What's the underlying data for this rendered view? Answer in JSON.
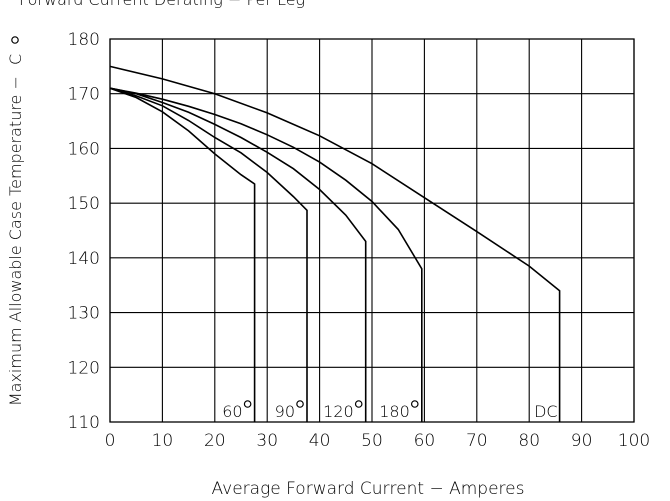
{
  "chart_data": {
    "type": "line",
    "title": "Forward Current Derating − Per Leg",
    "xlabel": "Average Forward Current − Amperes",
    "ylabel": "Maximum Allowable Case Temperature − ",
    "ylabel_unit": "C",
    "xlim": [
      0,
      100
    ],
    "ylim": [
      110,
      180
    ],
    "x_ticks": [
      "0",
      "10",
      "20",
      "30",
      "40",
      "50",
      "60",
      "70",
      "80",
      "90",
      "100"
    ],
    "y_ticks": [
      "110",
      "120",
      "130",
      "140",
      "150",
      "160",
      "170",
      "180"
    ],
    "grid": true,
    "series": [
      {
        "name": "60°",
        "label": "60",
        "x": [
          0,
          5,
          10,
          15,
          20,
          25,
          27.6,
          27.6
        ],
        "y": [
          171,
          169.3,
          166.7,
          163.2,
          159,
          155.2,
          153.5,
          110
        ]
      },
      {
        "name": "90°",
        "label": "90",
        "x": [
          0,
          5,
          10,
          15,
          20,
          25,
          30,
          35,
          37.6,
          37.6
        ],
        "y": [
          171,
          169.6,
          167.8,
          165.1,
          162,
          159.2,
          155.6,
          151.2,
          148.7,
          110
        ]
      },
      {
        "name": "120°",
        "label": "120",
        "x": [
          0,
          5,
          10,
          15,
          20,
          25,
          30,
          35,
          40,
          45,
          48.8,
          48.8
        ],
        "y": [
          171,
          170,
          168.4,
          166.6,
          164.4,
          162,
          159.3,
          156.3,
          152.5,
          147.8,
          143,
          110
        ]
      },
      {
        "name": "180°",
        "label": "180",
        "x": [
          0,
          5,
          10,
          15,
          20,
          25,
          30,
          35,
          40,
          45,
          50,
          55,
          59.5,
          59.5
        ],
        "y": [
          171,
          170.1,
          169,
          167.7,
          166.2,
          164.5,
          162.5,
          160.2,
          157.5,
          154.2,
          150.3,
          145.2,
          138,
          110
        ]
      },
      {
        "name": "DC",
        "label": "DC",
        "x": [
          0,
          10,
          20,
          30,
          40,
          50,
          60,
          70,
          80,
          85.8,
          85.8
        ],
        "y": [
          175,
          172.7,
          170,
          166.5,
          162.3,
          157.2,
          151,
          144.8,
          138.5,
          134,
          110
        ]
      }
    ]
  }
}
